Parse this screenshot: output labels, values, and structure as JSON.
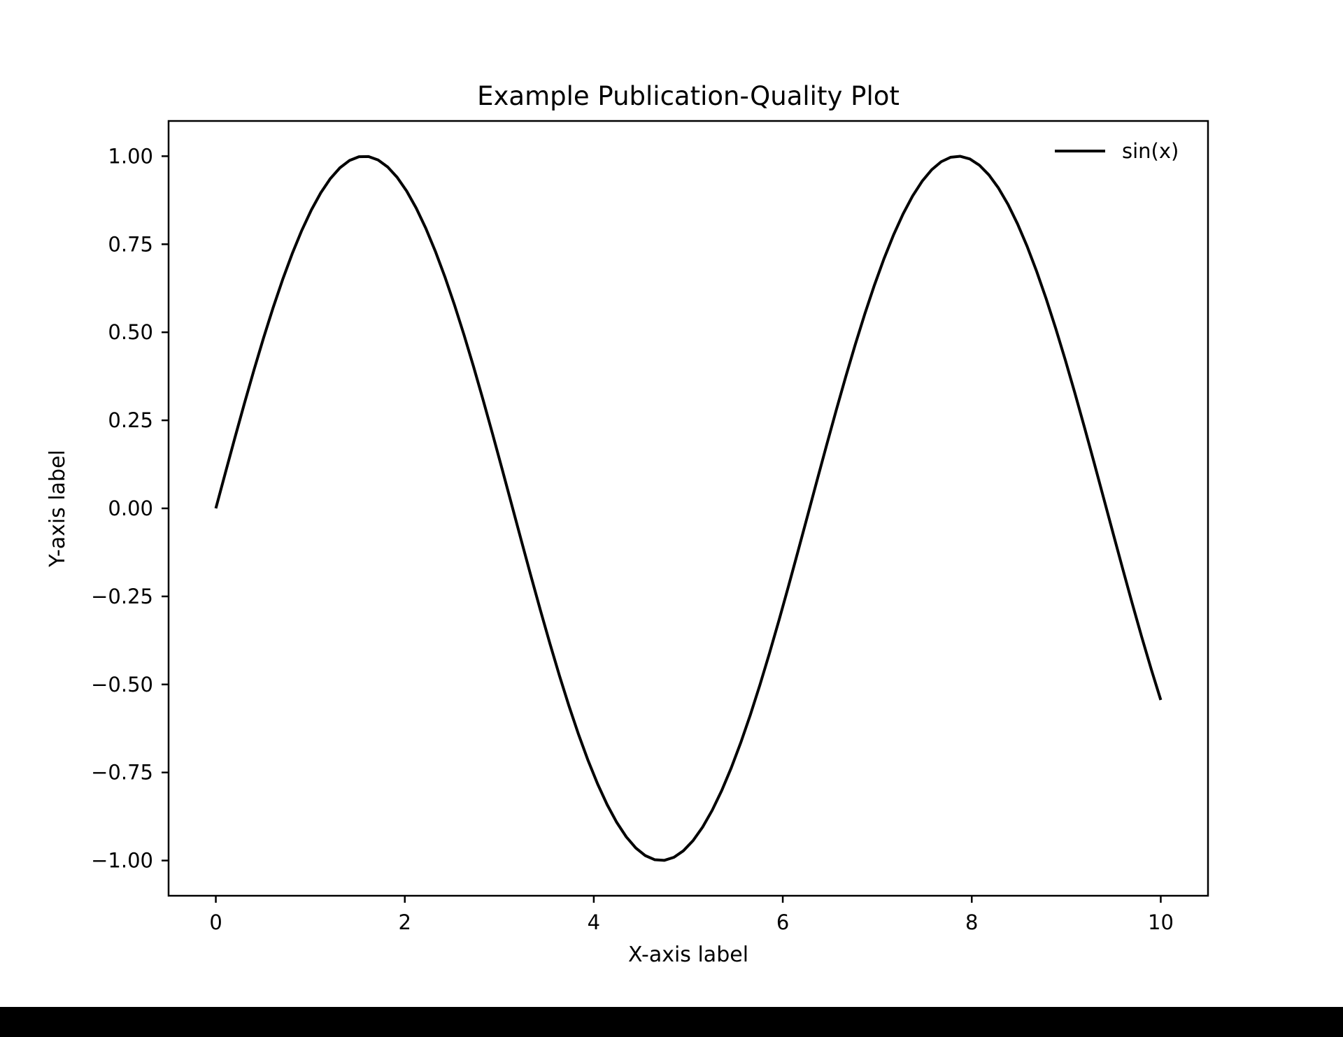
{
  "colors": {
    "background": "#ffffff",
    "line": "#000000",
    "frame": "#000000",
    "bottom_bar": "#000000"
  },
  "chart_data": {
    "type": "line",
    "title": "Example Publication-Quality Plot",
    "xlabel": "X-axis label",
    "ylabel": "Y-axis label",
    "xlim": [
      -0.5,
      10.5
    ],
    "ylim": [
      -1.1,
      1.1
    ],
    "xticks": [
      0,
      2,
      4,
      6,
      8,
      10
    ],
    "xtick_labels": [
      "0",
      "2",
      "4",
      "6",
      "8",
      "10"
    ],
    "yticks": [
      -1.0,
      -0.75,
      -0.5,
      -0.25,
      0.0,
      0.25,
      0.5,
      0.75,
      1.0
    ],
    "ytick_labels": [
      "−1.00",
      "−0.75",
      "−0.50",
      "−0.25",
      "0.00",
      "0.25",
      "0.50",
      "0.75",
      "1.00"
    ],
    "grid": false,
    "legend": {
      "position": "top-right",
      "frameless": true
    },
    "series": [
      {
        "name": "sin(x)",
        "color": "#000000",
        "function": "sin(x)",
        "x_range": [
          0,
          10
        ],
        "num_points": 100
      }
    ]
  }
}
